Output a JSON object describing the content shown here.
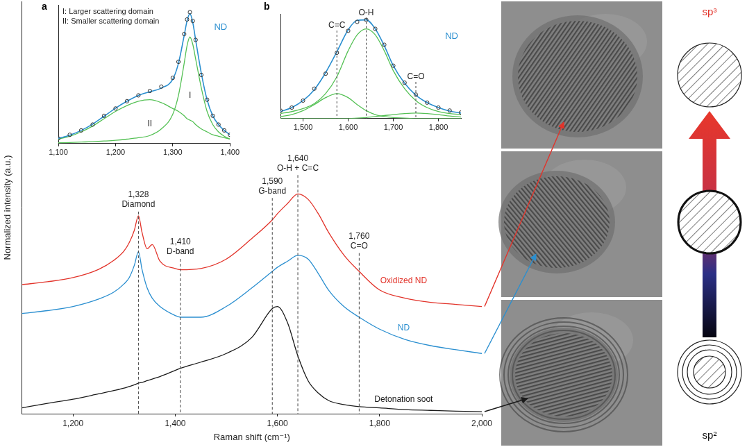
{
  "chart_data": [
    {
      "type": "line",
      "x_label": "Raman shift (cm⁻¹)",
      "y_label": "Normalized intensity (a.u.)",
      "x": [
        1100,
        1150,
        1200,
        1250,
        1280,
        1300,
        1310,
        1320,
        1328,
        1335,
        1345,
        1355,
        1370,
        1400,
        1410,
        1450,
        1500,
        1550,
        1590,
        1600,
        1620,
        1640,
        1660,
        1680,
        1700,
        1730,
        1760,
        1800,
        1850,
        1900,
        1950,
        2000
      ],
      "series": [
        {
          "name": "Oxidized ND",
          "color": "#e2332a",
          "values": [
            3.13,
            3.2,
            3.3,
            3.5,
            3.72,
            3.95,
            4.15,
            4.45,
            4.8,
            4.4,
            4.0,
            4.1,
            3.7,
            3.52,
            3.49,
            3.52,
            3.75,
            4.25,
            4.7,
            4.85,
            5.1,
            5.33,
            5.2,
            4.85,
            4.4,
            3.85,
            3.45,
            3.0,
            2.8,
            2.7,
            2.65,
            2.6
          ]
        },
        {
          "name": "ND",
          "color": "#2b8fd0",
          "values": [
            2.43,
            2.5,
            2.6,
            2.78,
            2.95,
            3.15,
            3.3,
            3.6,
            3.93,
            3.5,
            3.05,
            2.8,
            2.6,
            2.38,
            2.34,
            2.34,
            2.6,
            3.05,
            3.45,
            3.55,
            3.7,
            3.84,
            3.75,
            3.4,
            3.0,
            2.6,
            2.34,
            2.05,
            1.8,
            1.65,
            1.55,
            1.46
          ]
        },
        {
          "name": "Detonation soot",
          "color": "#1a1a1a",
          "values": [
            0.14,
            0.25,
            0.35,
            0.48,
            0.56,
            0.62,
            0.66,
            0.7,
            0.74,
            0.76,
            0.8,
            0.84,
            0.9,
            1.05,
            1.1,
            1.25,
            1.46,
            1.85,
            2.55,
            2.6,
            2.2,
            1.4,
            0.8,
            0.5,
            0.32,
            0.22,
            0.17,
            0.14,
            0.1,
            0.08,
            0.06,
            0.05
          ]
        }
      ],
      "xlim": [
        1100,
        2000
      ],
      "xticks": [
        {
          "value": 1200,
          "label": "1,200"
        },
        {
          "value": 1400,
          "label": "1,400"
        },
        {
          "value": 1600,
          "label": "1,600"
        },
        {
          "value": 1800,
          "label": "1,800"
        },
        {
          "value": 2000,
          "label": "2,000"
        }
      ],
      "ylim": [
        0,
        10
      ],
      "tick_labels": "x",
      "grid": false,
      "annotations": [
        {
          "x": 1328,
          "label": "1,328",
          "text": "Diamond"
        },
        {
          "x": 1410,
          "label": "1,410",
          "text": "D-band"
        },
        {
          "x": 1590,
          "label": "1,590",
          "text": "G-band"
        },
        {
          "x": 1640,
          "label": "1,640",
          "text": "O-H + C=C"
        },
        {
          "x": 1760,
          "label": "1,760",
          "text": "C=O"
        }
      ]
    },
    {
      "type": "line",
      "panel": "a",
      "annotations": [
        "I: Larger scattering domain",
        "II: Smaller scattering domain"
      ],
      "x": [
        1100,
        1120,
        1140,
        1160,
        1180,
        1200,
        1220,
        1240,
        1260,
        1280,
        1300,
        1310,
        1320,
        1325,
        1330,
        1335,
        1340,
        1350,
        1360,
        1370,
        1380,
        1390,
        1400
      ],
      "series": [
        {
          "name": "ND",
          "color": "#2b8fd0",
          "marker": "circle",
          "values": [
            0.035,
            0.06,
            0.09,
            0.13,
            0.19,
            0.24,
            0.29,
            0.33,
            0.36,
            0.39,
            0.45,
            0.56,
            0.75,
            0.85,
            0.9,
            0.84,
            0.71,
            0.47,
            0.3,
            0.19,
            0.13,
            0.09,
            0.06
          ],
          "fit": [
            0.035,
            0.057,
            0.09,
            0.133,
            0.187,
            0.242,
            0.29,
            0.33,
            0.355,
            0.38,
            0.44,
            0.55,
            0.74,
            0.84,
            0.89,
            0.83,
            0.71,
            0.48,
            0.3,
            0.19,
            0.13,
            0.09,
            0.06
          ]
        },
        {
          "name": "I",
          "color": "#55c155",
          "values": [
            0.005,
            0.007,
            0.01,
            0.013,
            0.017,
            0.022,
            0.03,
            0.04,
            0.055,
            0.1,
            0.2,
            0.33,
            0.55,
            0.67,
            0.73,
            0.68,
            0.58,
            0.38,
            0.22,
            0.13,
            0.08,
            0.05,
            0.03
          ]
        },
        {
          "name": "II",
          "color": "#55c155",
          "values": [
            0.03,
            0.05,
            0.08,
            0.12,
            0.17,
            0.22,
            0.26,
            0.29,
            0.3,
            0.28,
            0.24,
            0.22,
            0.19,
            0.17,
            0.16,
            0.15,
            0.13,
            0.1,
            0.08,
            0.06,
            0.05,
            0.04,
            0.03
          ]
        }
      ],
      "xlim": [
        1100,
        1400
      ],
      "xticks": [
        {
          "value": 1100,
          "label": "1,100"
        },
        {
          "value": 1200,
          "label": "1,200"
        },
        {
          "value": 1300,
          "label": "1,300"
        },
        {
          "value": 1400,
          "label": "1,400"
        }
      ],
      "ylim": [
        0,
        0.95
      ],
      "tick_labels": "x",
      "grid": false
    },
    {
      "type": "line",
      "panel": "b",
      "x": [
        1450,
        1475,
        1500,
        1525,
        1550,
        1575,
        1600,
        1620,
        1640,
        1660,
        1680,
        1700,
        1725,
        1750,
        1775,
        1800,
        1825,
        1850
      ],
      "series": [
        {
          "name": "ND",
          "color": "#2b8fd0",
          "marker": "circle",
          "values": [
            0.08,
            0.11,
            0.18,
            0.3,
            0.45,
            0.66,
            0.88,
            0.97,
            0.99,
            0.9,
            0.74,
            0.53,
            0.36,
            0.24,
            0.16,
            0.11,
            0.08,
            0.06
          ],
          "fit": [
            0.07,
            0.11,
            0.18,
            0.29,
            0.46,
            0.67,
            0.89,
            0.985,
            0.99,
            0.9,
            0.73,
            0.53,
            0.355,
            0.235,
            0.16,
            0.11,
            0.075,
            0.055
          ]
        },
        {
          "name": "C=C",
          "color": "#55c155",
          "values": [
            0.02,
            0.04,
            0.08,
            0.14,
            0.21,
            0.25,
            0.21,
            0.14,
            0.08,
            0.04,
            0.02,
            0.01,
            0.005,
            0,
            0,
            0,
            0,
            0
          ]
        },
        {
          "name": "O-H",
          "color": "#55c155",
          "values": [
            0.05,
            0.07,
            0.1,
            0.15,
            0.25,
            0.42,
            0.68,
            0.84,
            0.9,
            0.84,
            0.68,
            0.48,
            0.3,
            0.18,
            0.11,
            0.07,
            0.05,
            0.04
          ]
        },
        {
          "name": "C=O",
          "color": "#55c155",
          "values": [
            0,
            0,
            0,
            0,
            0,
            0,
            0,
            0.005,
            0.01,
            0.02,
            0.03,
            0.04,
            0.05,
            0.055,
            0.05,
            0.04,
            0.025,
            0.015
          ]
        }
      ],
      "xlim": [
        1450,
        1850
      ],
      "xticks": [
        {
          "value": 1500,
          "label": "1,500"
        },
        {
          "value": 1600,
          "label": "1,600"
        },
        {
          "value": 1700,
          "label": "1,700"
        },
        {
          "value": 1800,
          "label": "1,800"
        }
      ],
      "ylim": [
        0,
        1.05
      ],
      "tick_labels": "x",
      "grid": false
    }
  ],
  "schematic": {
    "top_label": "sp³",
    "bottom_label": "sp²"
  }
}
